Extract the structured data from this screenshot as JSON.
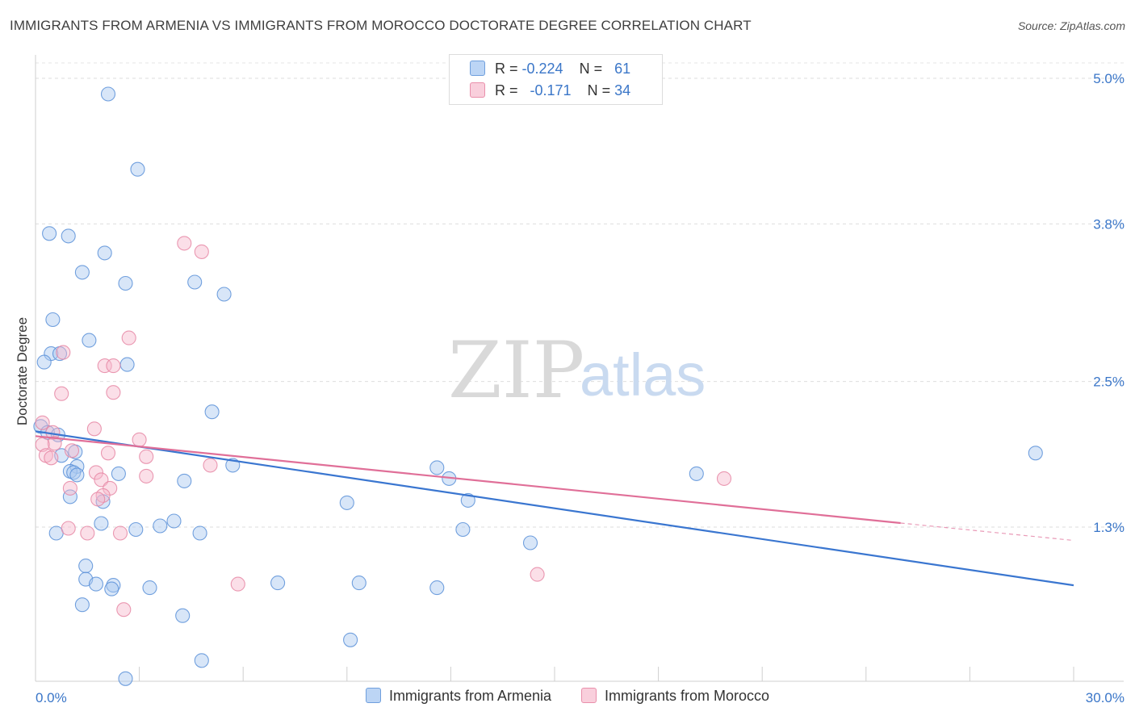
{
  "header": {
    "title": "IMMIGRANTS FROM ARMENIA VS IMMIGRANTS FROM MOROCCO DOCTORATE DEGREE CORRELATION CHART",
    "source": "Source: ZipAtlas.com"
  },
  "watermark": {
    "zip": "ZIP",
    "atlas": "atlas"
  },
  "legend": {
    "armenia": {
      "r_label": "R =",
      "r_value": "-0.224",
      "n_label": "N =",
      "n_value": "61",
      "color": "#a9c8f0"
    },
    "morocco": {
      "r_label": "R =",
      "r_value": "-0.171",
      "n_label": "N =",
      "n_value": "34",
      "color": "#f6b8cb"
    }
  },
  "chart_data": {
    "type": "scatter",
    "title": "IMMIGRANTS FROM ARMENIA VS IMMIGRANTS FROM MOROCCO DOCTORATE DEGREE CORRELATION CHART",
    "xlabel": "",
    "ylabel": "Doctorate Degree",
    "xlim": [
      0,
      30
    ],
    "ylim": [
      0,
      5.2
    ],
    "x_tick_labels": [
      "0.0%",
      "30.0%"
    ],
    "y_ticks": [
      {
        "value": 1.3,
        "label": "1.3%"
      },
      {
        "value": 2.5,
        "label": "2.5%"
      },
      {
        "value": 3.8,
        "label": "3.8%"
      },
      {
        "value": 5.0,
        "label": "5.0%"
      }
    ],
    "grid": true,
    "series": [
      {
        "name": "Immigrants from Armenia",
        "color": "#a9c8f0",
        "stroke": "#5b90d8",
        "trend": {
          "x0": 0,
          "y0": 2.09,
          "x1": 30,
          "y1": 0.82,
          "color": "#3a76d0",
          "dashed_from": null
        },
        "points": [
          [
            2.1,
            4.87
          ],
          [
            2.95,
            4.25
          ],
          [
            0.4,
            3.72
          ],
          [
            0.95,
            3.7
          ],
          [
            2.0,
            3.56
          ],
          [
            1.35,
            3.4
          ],
          [
            2.6,
            3.31
          ],
          [
            4.6,
            3.32
          ],
          [
            5.45,
            3.22
          ],
          [
            0.5,
            3.01
          ],
          [
            1.55,
            2.84
          ],
          [
            0.45,
            2.73
          ],
          [
            0.7,
            2.73
          ],
          [
            0.25,
            2.66
          ],
          [
            2.65,
            2.64
          ],
          [
            0.15,
            2.13
          ],
          [
            0.35,
            2.08
          ],
          [
            0.65,
            2.06
          ],
          [
            5.1,
            2.25
          ],
          [
            1.15,
            1.92
          ],
          [
            0.75,
            1.89
          ],
          [
            5.7,
            1.81
          ],
          [
            1.2,
            1.8
          ],
          [
            1.0,
            1.76
          ],
          [
            1.1,
            1.75
          ],
          [
            1.2,
            1.73
          ],
          [
            2.4,
            1.74
          ],
          [
            11.6,
            1.79
          ],
          [
            11.95,
            1.7
          ],
          [
            19.1,
            1.74
          ],
          [
            28.9,
            1.91
          ],
          [
            4.3,
            1.68
          ],
          [
            1.0,
            1.55
          ],
          [
            1.95,
            1.51
          ],
          [
            9.0,
            1.5
          ],
          [
            12.5,
            1.52
          ],
          [
            4.0,
            1.35
          ],
          [
            3.6,
            1.31
          ],
          [
            1.9,
            1.33
          ],
          [
            2.9,
            1.28
          ],
          [
            12.35,
            1.28
          ],
          [
            0.6,
            1.25
          ],
          [
            4.75,
            1.25
          ],
          [
            14.3,
            1.17
          ],
          [
            1.45,
            0.98
          ],
          [
            1.45,
            0.87
          ],
          [
            1.75,
            0.83
          ],
          [
            2.25,
            0.82
          ],
          [
            2.2,
            0.79
          ],
          [
            3.3,
            0.8
          ],
          [
            7.0,
            0.84
          ],
          [
            9.35,
            0.84
          ],
          [
            11.6,
            0.8
          ],
          [
            1.35,
            0.66
          ],
          [
            4.25,
            0.57
          ],
          [
            9.1,
            0.37
          ],
          [
            4.8,
            0.2
          ],
          [
            2.6,
            0.05
          ]
        ]
      },
      {
        "name": "Immigrants from Morocco",
        "color": "#f6b8cb",
        "stroke": "#e687a4",
        "trend": {
          "x0": 0,
          "y0": 2.05,
          "x1": 30,
          "y1": 1.19,
          "color": "#e06f98",
          "dashed_from": 25
        },
        "points": [
          [
            4.3,
            3.64
          ],
          [
            4.8,
            3.57
          ],
          [
            2.7,
            2.86
          ],
          [
            2.0,
            2.63
          ],
          [
            2.25,
            2.63
          ],
          [
            0.8,
            2.74
          ],
          [
            0.75,
            2.4
          ],
          [
            2.25,
            2.41
          ],
          [
            0.2,
            2.16
          ],
          [
            1.7,
            2.11
          ],
          [
            0.5,
            2.08
          ],
          [
            0.55,
            1.99
          ],
          [
            0.2,
            1.98
          ],
          [
            3.0,
            2.02
          ],
          [
            0.3,
            1.89
          ],
          [
            1.05,
            1.93
          ],
          [
            2.1,
            1.91
          ],
          [
            3.2,
            1.88
          ],
          [
            0.45,
            1.87
          ],
          [
            5.05,
            1.81
          ],
          [
            1.75,
            1.75
          ],
          [
            3.2,
            1.72
          ],
          [
            19.9,
            1.7
          ],
          [
            1.9,
            1.69
          ],
          [
            1.0,
            1.62
          ],
          [
            2.15,
            1.62
          ],
          [
            1.95,
            1.56
          ],
          [
            1.8,
            1.53
          ],
          [
            0.95,
            1.29
          ],
          [
            1.5,
            1.25
          ],
          [
            2.45,
            1.25
          ],
          [
            14.5,
            0.91
          ],
          [
            5.85,
            0.83
          ],
          [
            2.55,
            0.62
          ]
        ]
      }
    ]
  },
  "bottom_legend": {
    "items": [
      {
        "label": "Immigrants from Armenia"
      },
      {
        "label": "Immigrants from Morocco"
      }
    ]
  }
}
